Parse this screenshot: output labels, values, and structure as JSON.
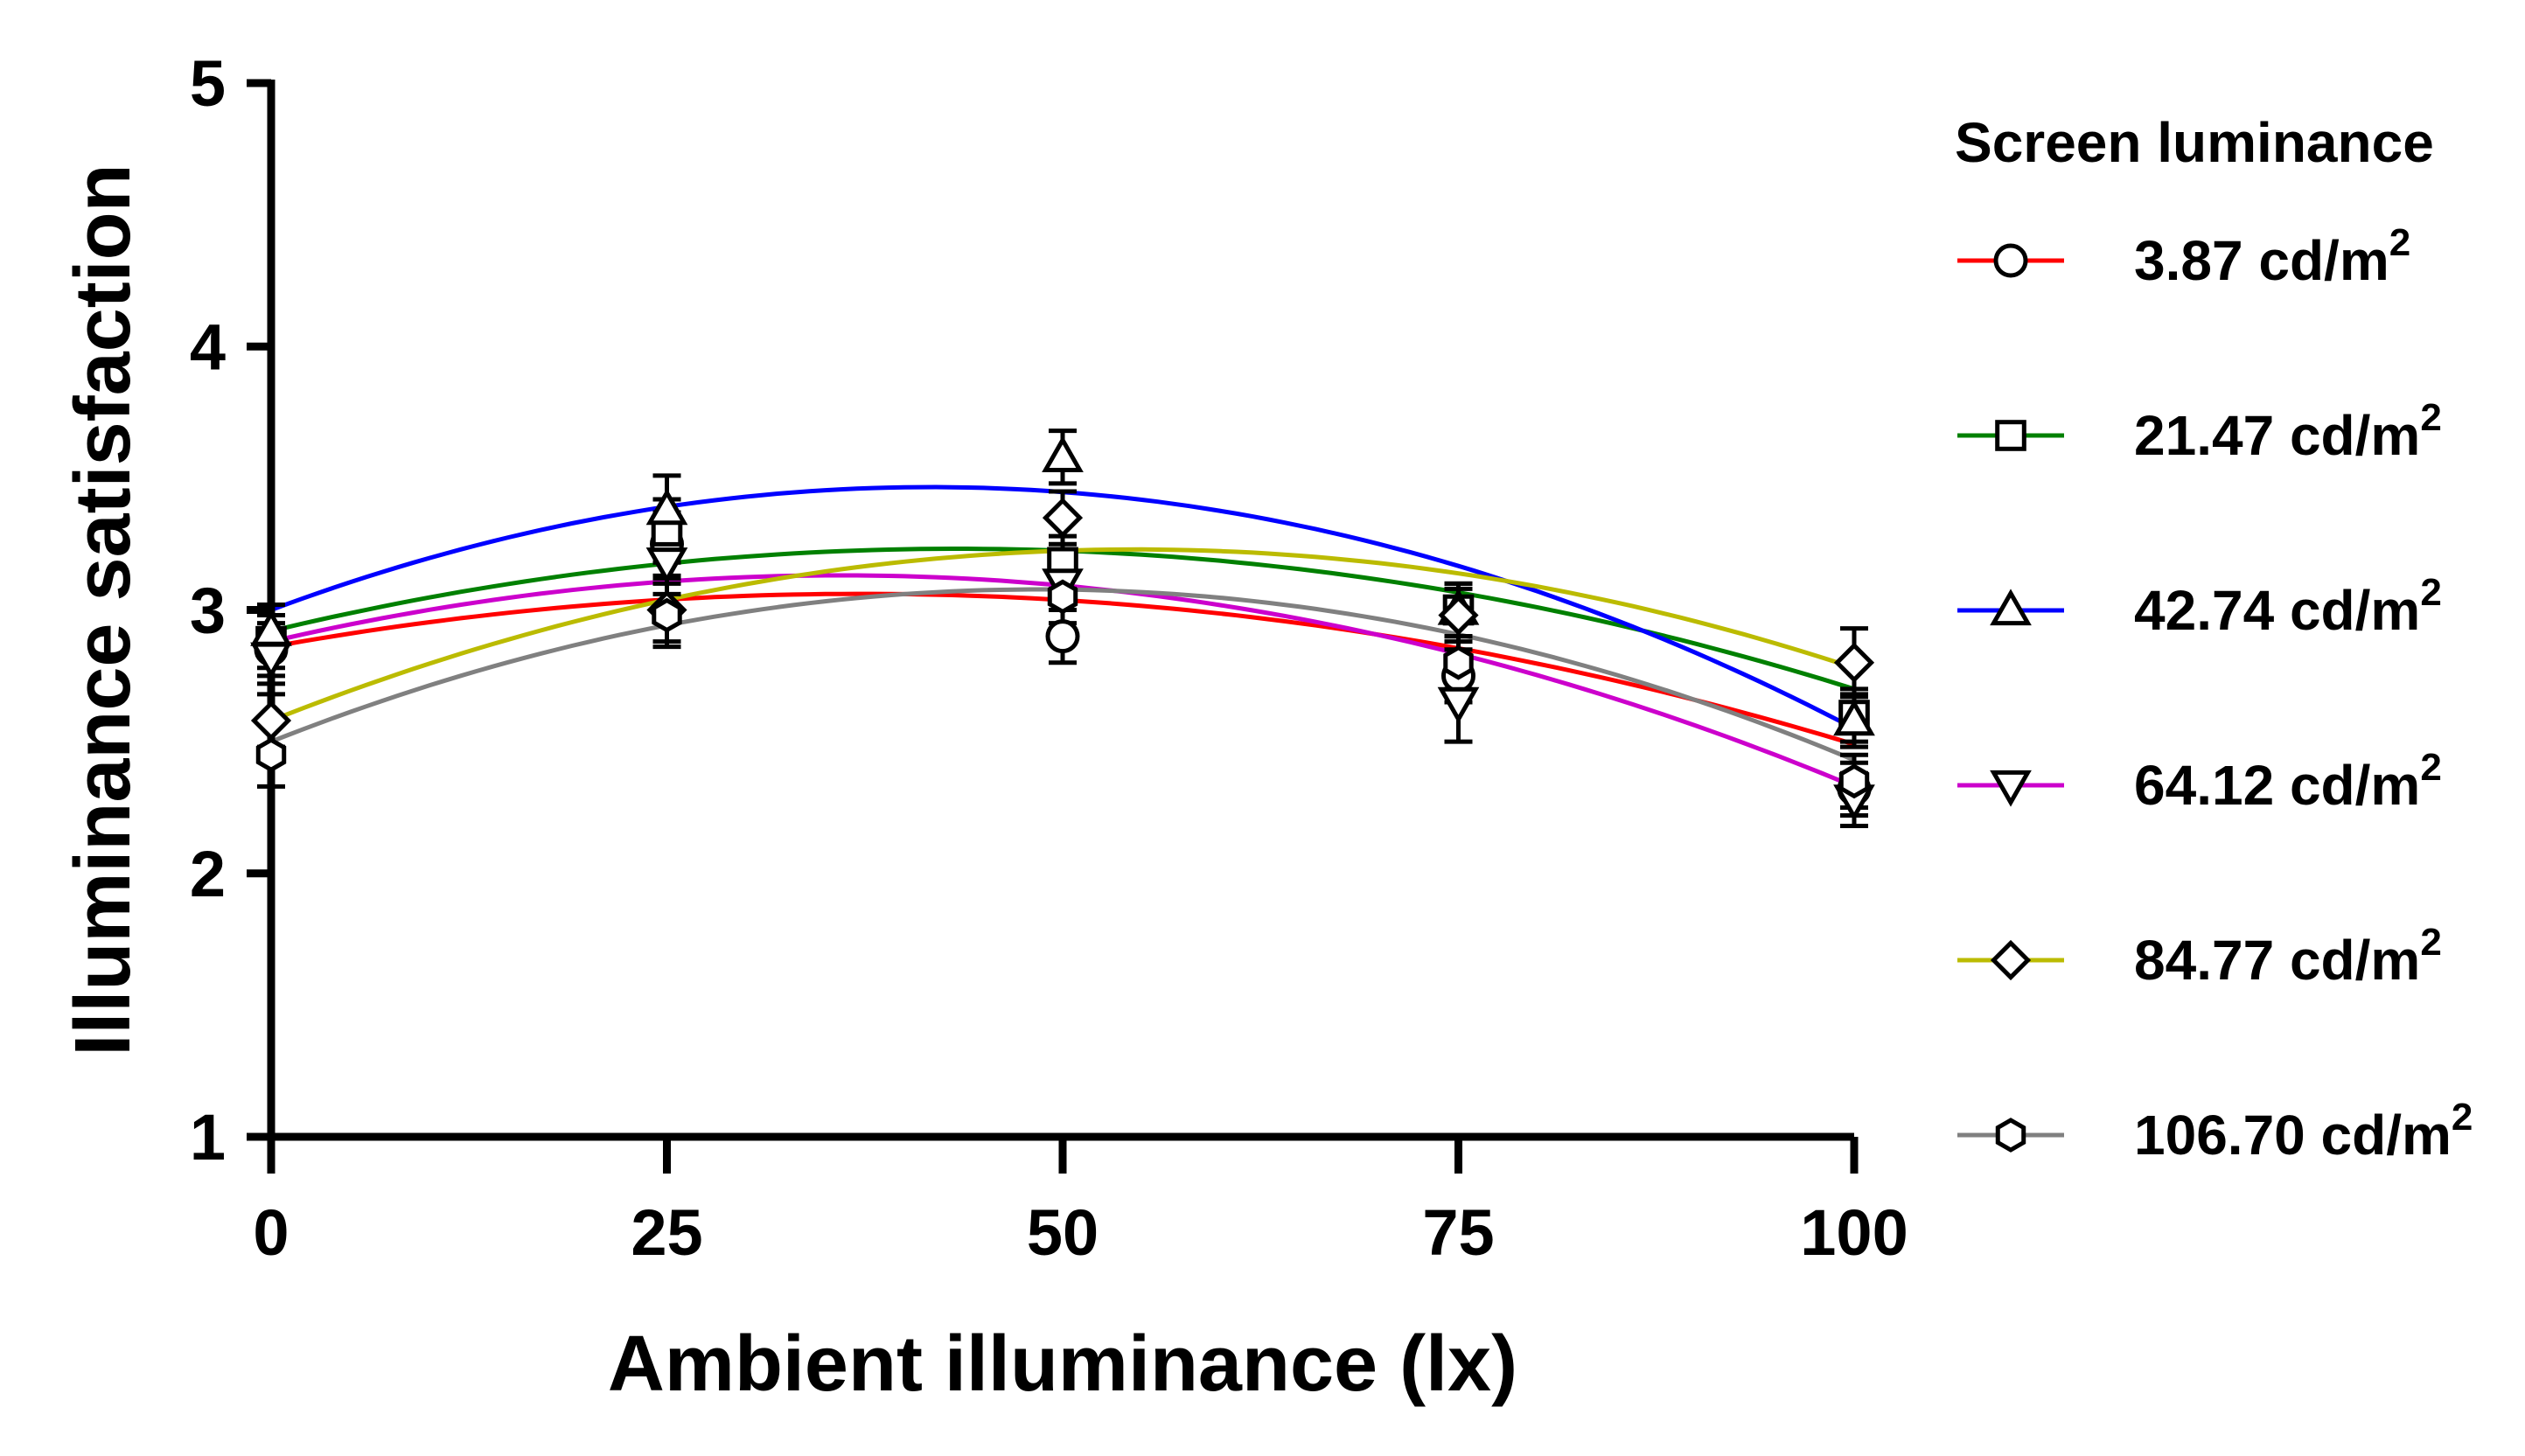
{
  "chart_data": {
    "type": "scatter",
    "title": "",
    "xlabel": "Ambient illuminance (lx)",
    "ylabel": "Illuminance satisfaction",
    "xlim": [
      0,
      100
    ],
    "ylim": [
      1,
      5
    ],
    "xticks": [
      "0",
      "25",
      "50",
      "75",
      "100"
    ],
    "yticks": [
      "1",
      "2",
      "3",
      "4",
      "5"
    ],
    "x": [
      0,
      25,
      50,
      75,
      100
    ],
    "legend_title": "Screen luminance",
    "legend_position": "right",
    "fit": "quadratic",
    "series": [
      {
        "name": "3.87 cd/m2",
        "label_main": "3.87 cd/m",
        "label_sup": "2",
        "marker": "circle",
        "color": "#ff0000",
        "values": [
          2.85,
          3.25,
          2.9,
          2.75,
          2.32
        ],
        "errors": [
          0.1,
          0.12,
          0.1,
          0.1,
          0.1
        ],
        "fit_coeffs": [
          2.86,
          0.0108,
          -0.000145
        ]
      },
      {
        "name": "21.47 cd/m2",
        "label_main": "21.47 cd/m",
        "label_sup": "2",
        "marker": "square",
        "color": "#008000",
        "values": [
          2.88,
          3.3,
          3.18,
          3.0,
          2.6
        ],
        "errors": [
          0.1,
          0.12,
          0.1,
          0.1,
          0.1
        ],
        "fit_coeffs": [
          2.92,
          0.0144,
          -0.000166
        ]
      },
      {
        "name": "42.74 cd/m2",
        "label_main": "42.74 cd/m",
        "label_sup": "2",
        "marker": "triangle-up",
        "color": "#0000ff",
        "values": [
          2.92,
          3.38,
          3.58,
          3.0,
          2.58
        ],
        "errors": [
          0.1,
          0.13,
          0.1,
          0.1,
          0.1
        ],
        "fit_coeffs": [
          3.0,
          0.0224,
          -0.000269
        ]
      },
      {
        "name": "64.12 cd/m2",
        "label_main": "64.12 cd/m",
        "label_sup": "2",
        "marker": "triangle-down",
        "color": "#cc00cc",
        "values": [
          2.82,
          3.18,
          3.1,
          2.65,
          2.28
        ],
        "errors": [
          0.1,
          0.12,
          0.1,
          0.15,
          0.1
        ],
        "fit_coeffs": [
          2.88,
          0.014,
          -0.000195
        ]
      },
      {
        "name": "84.77 cd/m2",
        "label_main": "84.77 cd/m",
        "label_sup": "2",
        "marker": "diamond",
        "color": "#bbbb00",
        "values": [
          2.58,
          3.0,
          3.35,
          2.98,
          2.8
        ],
        "errors": [
          0.1,
          0.12,
          0.1,
          0.1,
          0.13
        ],
        "fit_coeffs": [
          2.58,
          0.0238,
          -0.000218
        ]
      },
      {
        "name": "106.70 cd/m2",
        "label_main": "106.70 cd/m",
        "label_sup": "2",
        "marker": "hexagon",
        "color": "#808080",
        "values": [
          2.45,
          2.98,
          3.05,
          2.8,
          2.35
        ],
        "errors": [
          0.12,
          0.12,
          0.1,
          0.1,
          0.1
        ],
        "fit_coeffs": [
          2.5,
          0.0238,
          -0.000245
        ]
      }
    ]
  }
}
